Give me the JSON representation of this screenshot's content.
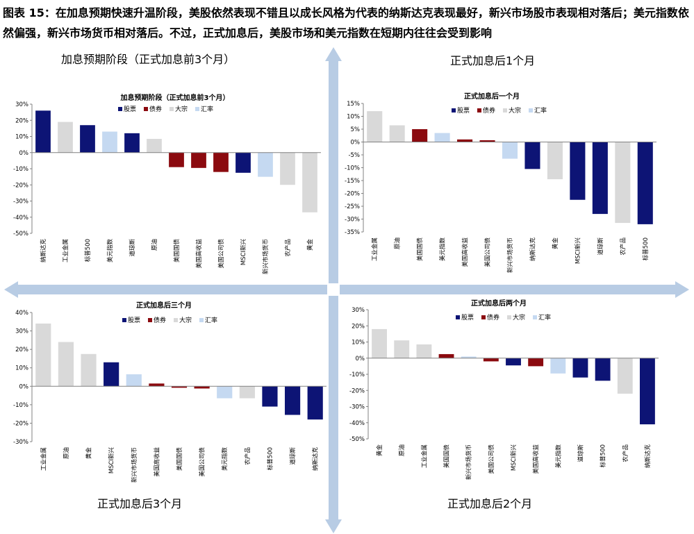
{
  "heading": "图表 15：在加息预期快速升温阶段，美股依然表现不错且以成长风格为代表的纳斯达克表现最好，新兴市场股市表现相对落后；美元指数依然偏强，新兴市场货币相对落后。不过，正式加息后，美股市场和美元指数在短期内往往会受到影响",
  "quadrant_labels": {
    "top_left": "加息预期阶段（正式加息前3个月）",
    "top_right": "正式加息后1个月",
    "bottom_left": "正式加息后3个月",
    "bottom_right": "正式加息后2个月"
  },
  "colors": {
    "股票": "#0d1475",
    "债券": "#8b0a0f",
    "大宗": "#d9d9d9",
    "汇率": "#c5d9f1",
    "arrow": "#b8cce4"
  },
  "chart_data": [
    {
      "type": "bar",
      "title": "加息预期阶段（正式加息前3个月）",
      "legend": [
        "股票",
        "债券",
        "大宗",
        "汇率"
      ],
      "ylim": [
        -50,
        30
      ],
      "yticks": [
        30,
        20,
        10,
        0,
        -10,
        -20,
        -30,
        -40,
        -50
      ],
      "tick_suffix": "%",
      "categories": [
        "纳斯达克",
        "工业金属",
        "标普500",
        "美元指数",
        "道琼斯",
        "原油",
        "美国国债",
        "美国高收益",
        "美国公司债",
        "MSCI新兴",
        "新兴市场货币",
        "农产品",
        "黄金"
      ],
      "values": [
        26,
        19,
        17,
        13,
        12,
        8.5,
        -9,
        -9.5,
        -12,
        -12.5,
        -15,
        -20,
        -37
      ],
      "groups": [
        "股票",
        "大宗",
        "股票",
        "汇率",
        "股票",
        "大宗",
        "债券",
        "债券",
        "债券",
        "股票",
        "汇率",
        "大宗",
        "大宗"
      ]
    },
    {
      "type": "bar",
      "title": "正式加息后一个月",
      "legend": [
        "股票",
        "债券",
        "大宗",
        "汇率"
      ],
      "ylim": [
        -35,
        15
      ],
      "yticks": [
        15,
        10,
        5,
        0,
        -5,
        -10,
        -15,
        -20,
        -25,
        -30,
        -35
      ],
      "tick_suffix": "%",
      "categories": [
        "工业金属",
        "原油",
        "美国国债",
        "美元指数",
        "美国高收益",
        "美国公司债",
        "新兴市场货币",
        "纳斯达克",
        "黄金",
        "MSCI新兴",
        "道琼斯",
        "农产品",
        "标普500"
      ],
      "values": [
        12,
        6.5,
        5,
        3.5,
        1,
        0.7,
        -6.5,
        -10.5,
        -14.5,
        -22.5,
        -28,
        -31.5,
        -32
      ],
      "groups": [
        "大宗",
        "大宗",
        "债券",
        "汇率",
        "债券",
        "债券",
        "汇率",
        "股票",
        "大宗",
        "股票",
        "股票",
        "大宗",
        "股票"
      ]
    },
    {
      "type": "bar",
      "title": "正式加息后三个月",
      "legend": [
        "股票",
        "债券",
        "大宗",
        "汇率"
      ],
      "ylim": [
        -30,
        40
      ],
      "yticks": [
        40,
        30,
        20,
        10,
        0,
        -10,
        -20,
        -30
      ],
      "tick_suffix": "%",
      "categories": [
        "工业金属",
        "原油",
        "黄金",
        "MSCI新兴",
        "新兴市场货币",
        "美国高收益",
        "美国国债",
        "美国公司债",
        "美元指数",
        "农产品",
        "标普500",
        "道琼斯",
        "纳斯达克"
      ],
      "values": [
        34,
        24,
        17.5,
        13,
        6.5,
        1.5,
        -0.8,
        -1.2,
        -6.5,
        -6.5,
        -11,
        -15.5,
        -18
      ],
      "groups": [
        "大宗",
        "大宗",
        "大宗",
        "股票",
        "汇率",
        "债券",
        "债券",
        "债券",
        "汇率",
        "大宗",
        "股票",
        "股票",
        "股票"
      ]
    },
    {
      "type": "bar",
      "title": "正式加息后两个月",
      "legend": [
        "股票",
        "债券",
        "大宗",
        "汇率"
      ],
      "ylim": [
        -50,
        30
      ],
      "yticks": [
        30,
        20,
        10,
        0,
        -10,
        -20,
        -30,
        -40,
        -50
      ],
      "tick_suffix": "%",
      "categories": [
        "黄金",
        "原油",
        "工业金属",
        "美国国债",
        "新兴市场货币",
        "美国公司债",
        "MSCI新兴",
        "美国高收益",
        "美元指数",
        "道琼斯",
        "标普500",
        "农产品",
        "纳斯达克"
      ],
      "values": [
        18,
        11,
        8.5,
        2.5,
        1,
        -2,
        -4.5,
        -5,
        -9.5,
        -12,
        -14,
        -22,
        -41
      ],
      "groups": [
        "大宗",
        "大宗",
        "大宗",
        "债券",
        "汇率",
        "债券",
        "股票",
        "债券",
        "汇率",
        "股票",
        "股票",
        "大宗",
        "股票"
      ]
    }
  ]
}
